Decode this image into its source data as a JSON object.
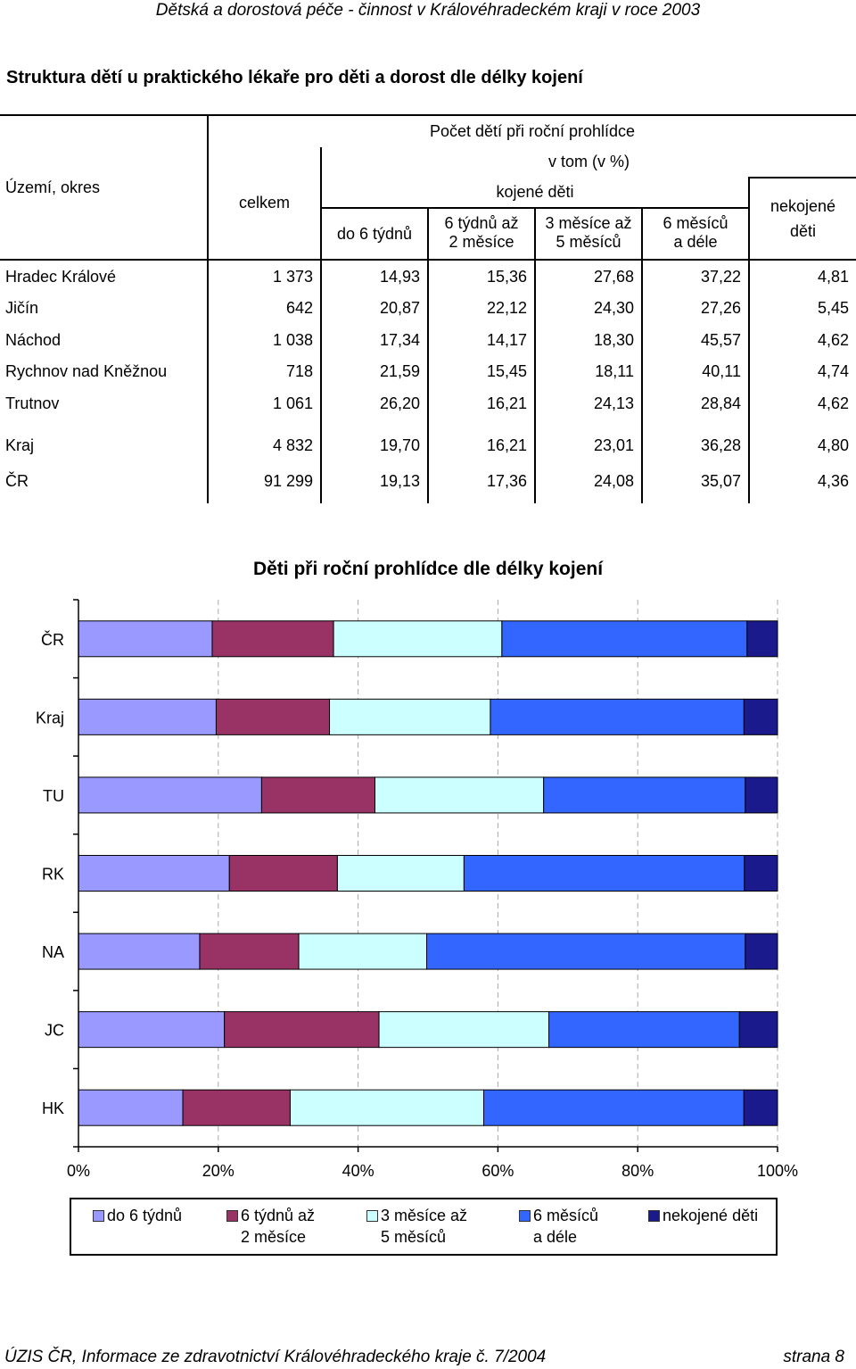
{
  "header": "Dětská a dorostová péče - činnost v Královéhradeckém kraji v roce 2003",
  "title": "Struktura dětí u praktického lékaře pro děti a dorost dle délky kojení",
  "table": {
    "col_territory": "Území, okres",
    "group_top": "Počet dětí při roční prohlídce",
    "col_total": "celkem",
    "group_of_which": "v tom (v %)",
    "group_breastfed": "kojené děti",
    "col1": "do 6 týdnů",
    "col2a": "6 týdnů až",
    "col2b": "2 měsíce",
    "col3a": "3 měsíce až",
    "col3b": "5 měsíců",
    "col4a": "6 měsíců",
    "col4b": "a déle",
    "col5a": "nekojené",
    "col5b": "děti",
    "rows": [
      {
        "name": "Hradec Králové",
        "total": "1 373",
        "v1": "14,93",
        "v2": "15,36",
        "v3": "27,68",
        "v4": "37,22",
        "v5": "4,81"
      },
      {
        "name": "Jičín",
        "total": "642",
        "v1": "20,87",
        "v2": "22,12",
        "v3": "24,30",
        "v4": "27,26",
        "v5": "5,45"
      },
      {
        "name": "Náchod",
        "total": "1 038",
        "v1": "17,34",
        "v2": "14,17",
        "v3": "18,30",
        "v4": "45,57",
        "v5": "4,62"
      },
      {
        "name": "Rychnov nad Kněžnou",
        "total": "718",
        "v1": "21,59",
        "v2": "15,45",
        "v3": "18,11",
        "v4": "40,11",
        "v5": "4,74"
      },
      {
        "name": "Trutnov",
        "total": "1 061",
        "v1": "26,20",
        "v2": "16,21",
        "v3": "24,13",
        "v4": "28,84",
        "v5": "4,62"
      }
    ],
    "kraj": {
      "name": "Kraj",
      "total": "4 832",
      "v1": "19,70",
      "v2": "16,21",
      "v3": "23,01",
      "v4": "36,28",
      "v5": "4,80"
    },
    "cr": {
      "name": "ČR",
      "total": "91 299",
      "v1": "19,13",
      "v2": "17,36",
      "v3": "24,08",
      "v4": "35,07",
      "v5": "4,36"
    }
  },
  "chart_data": {
    "type": "bar",
    "orientation": "horizontal",
    "stacked": "percent",
    "title": "Děti při roční prohlídce dle délky kojení",
    "categories": [
      "ČR",
      "Kraj",
      "TU",
      "RK",
      "NA",
      "JC",
      "HK"
    ],
    "series": [
      {
        "name": "do 6 týdnů",
        "color": "#9999ff",
        "values": [
          19.13,
          19.7,
          26.2,
          21.59,
          17.34,
          20.87,
          14.93
        ]
      },
      {
        "name": "6 týdnů až 2 měsíce",
        "color": "#993366",
        "values": [
          17.36,
          16.21,
          16.21,
          15.45,
          14.17,
          22.12,
          15.36
        ]
      },
      {
        "name": "3 měsíce až 5 měsíců",
        "color": "#ccffff",
        "values": [
          24.08,
          23.01,
          24.13,
          18.11,
          18.3,
          24.3,
          27.68
        ]
      },
      {
        "name": "6 měsíců a déle",
        "color": "#3366ff",
        "values": [
          35.07,
          36.28,
          28.84,
          40.11,
          45.57,
          27.26,
          37.22
        ]
      },
      {
        "name": "nekojené děti",
        "color": "#1a1a8c",
        "values": [
          4.36,
          4.8,
          4.62,
          4.74,
          4.62,
          5.45,
          4.81
        ]
      }
    ],
    "xticks": [
      "0%",
      "20%",
      "40%",
      "60%",
      "80%",
      "100%"
    ],
    "xlim": [
      0,
      100
    ],
    "grid": "vertical dashed",
    "legend_position": "bottom"
  },
  "legend": {
    "l1a": "do 6 týdnů",
    "l2a": "6 týdnů až",
    "l2b": "2 měsíce",
    "l3a": "3 měsíce až",
    "l3b": "5 měsíců",
    "l4a": "6 měsíců",
    "l4b": "a déle",
    "l5a": "nekojené děti"
  },
  "footer": {
    "left": "ÚZIS ČR, Informace ze zdravotnictví Královéhradeckého kraje č. 7/2004",
    "right": "strana 8"
  }
}
